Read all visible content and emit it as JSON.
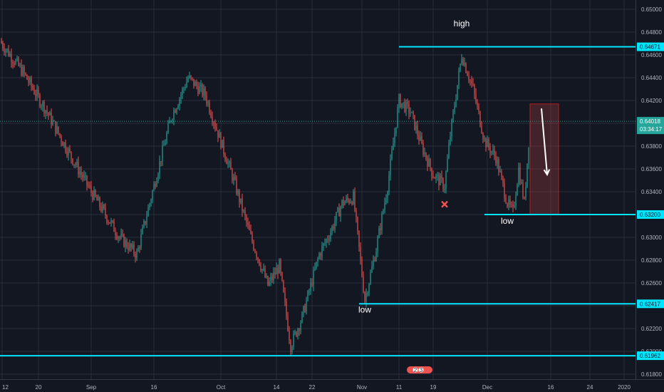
{
  "chart_data": {
    "type": "candlestick",
    "y_ticks": [
      "0.65000",
      "0.64800",
      "0.64600",
      "0.64400",
      "0.64200",
      "0.64000",
      "0.63800",
      "0.63600",
      "0.63400",
      "0.63200",
      "0.63000",
      "0.62800",
      "0.62600",
      "0.62400",
      "0.62200",
      "0.62000",
      "0.61800"
    ],
    "x_ticks": [
      "12",
      "20",
      "Sep",
      "16",
      "Oct",
      "14",
      "22",
      "Nov",
      "11",
      "19",
      "Dec",
      "16",
      "24",
      "2020"
    ],
    "ylim": [
      0.6175,
      0.651
    ],
    "colors": {
      "up": "#26a69a",
      "down": "#ef5350",
      "level": "#00e5ff",
      "grid": "#2a2e39",
      "background": "#131722"
    },
    "levels": [
      {
        "price": 0.64671,
        "label": "0.64671",
        "from_x": "Oct 21"
      },
      {
        "price": 0.632,
        "label": "0.63200",
        "from_x": "Nov 5"
      },
      {
        "price": 0.62417,
        "label": "0.62417",
        "from_x": "Oct 14"
      },
      {
        "price": 0.61962,
        "label": "0.61962",
        "from_x": "Aug 12"
      }
    ],
    "current": {
      "price": 0.64018,
      "label": "0.64018",
      "countdown": "03:34:17"
    },
    "annotations": [
      {
        "text": "high",
        "x": "Nov 1",
        "price": 0.6485
      },
      {
        "text": "low",
        "x": "Nov 9",
        "price": 0.6312
      },
      {
        "text": "low",
        "x": "Oct 15",
        "price": 0.6234
      }
    ],
    "marker_x": {
      "x": "Oct 29",
      "price": 0.6329
    },
    "projection_box": {
      "from_x": "Nov 13",
      "to_x": "Nov 18",
      "top": 0.6417,
      "bottom": 0.632
    },
    "arrow": {
      "from_x": "Nov 15",
      "from_price": 0.6413,
      "to_x": "Nov 16",
      "to_price": 0.6355
    },
    "event_badges": [
      "2",
      "3"
    ],
    "price_path": [
      {
        "x": "Aug 12",
        "price": 0.6472
      },
      {
        "x": "Aug 16",
        "price": 0.6445
      },
      {
        "x": "Aug 20",
        "price": 0.6412
      },
      {
        "x": "Aug 24",
        "price": 0.6375
      },
      {
        "x": "Aug 28",
        "price": 0.634
      },
      {
        "x": "Sep 2",
        "price": 0.63
      },
      {
        "x": "Sep 5",
        "price": 0.6285
      },
      {
        "x": "Sep 8",
        "price": 0.6345
      },
      {
        "x": "Sep 11",
        "price": 0.6405
      },
      {
        "x": "Sep 14",
        "price": 0.644
      },
      {
        "x": "Sep 17",
        "price": 0.6425
      },
      {
        "x": "Sep 19",
        "price": 0.6395
      },
      {
        "x": "Sep 22",
        "price": 0.635
      },
      {
        "x": "Sep 25",
        "price": 0.63
      },
      {
        "x": "Sep 28",
        "price": 0.6258
      },
      {
        "x": "Sep 30",
        "price": 0.6275
      },
      {
        "x": "Oct 2",
        "price": 0.6205
      },
      {
        "x": "Oct 4",
        "price": 0.623
      },
      {
        "x": "Oct 7",
        "price": 0.6285
      },
      {
        "x": "Oct 9",
        "price": 0.6305
      },
      {
        "x": "Oct 11",
        "price": 0.633
      },
      {
        "x": "Oct 13",
        "price": 0.6335
      },
      {
        "x": "Oct 15",
        "price": 0.6245
      },
      {
        "x": "Oct 17",
        "price": 0.629
      },
      {
        "x": "Oct 19",
        "price": 0.6345
      },
      {
        "x": "Oct 21",
        "price": 0.642
      },
      {
        "x": "Oct 23",
        "price": 0.641
      },
      {
        "x": "Oct 25",
        "price": 0.638
      },
      {
        "x": "Oct 27",
        "price": 0.6355
      },
      {
        "x": "Oct 29",
        "price": 0.6345
      },
      {
        "x": "Oct 30",
        "price": 0.639
      },
      {
        "x": "Nov 1",
        "price": 0.646
      },
      {
        "x": "Nov 3",
        "price": 0.643
      },
      {
        "x": "Nov 5",
        "price": 0.6385
      },
      {
        "x": "Nov 7",
        "price": 0.637
      },
      {
        "x": "Nov 9",
        "price": 0.633
      },
      {
        "x": "Nov 10",
        "price": 0.6322
      },
      {
        "x": "Nov 11",
        "price": 0.636
      },
      {
        "x": "Nov 12",
        "price": 0.633
      },
      {
        "x": "Nov 13",
        "price": 0.6402
      }
    ]
  }
}
